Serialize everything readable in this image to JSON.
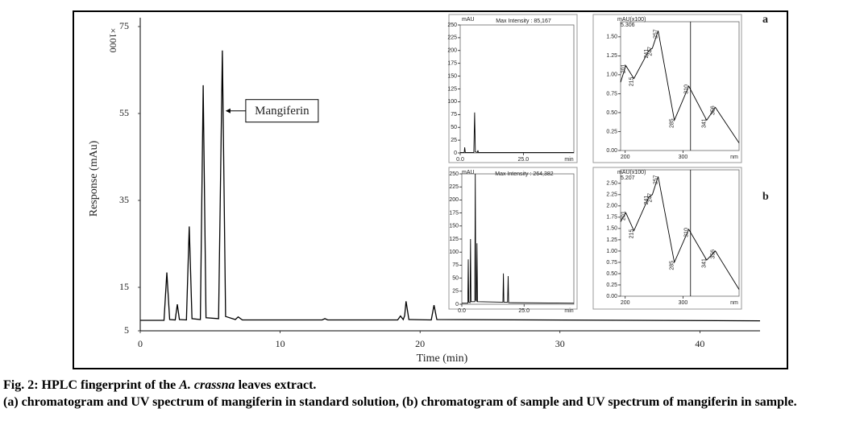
{
  "panel_labels": [
    "a",
    "b"
  ],
  "chart_data": [
    {
      "type": "line",
      "ylabel": "Response (mAu)",
      "xlabel": "Time (min)",
      "y_multiplier_label": "×1000",
      "annotation": "Mangiferin",
      "color": "#000000",
      "xlim": [
        0,
        44.3
      ],
      "ylim": [
        5,
        75
      ],
      "xticks": [
        0,
        10,
        20,
        30,
        40
      ],
      "yticks": [
        75,
        55,
        35,
        15,
        5
      ],
      "x": [
        0,
        1.7,
        1.9,
        2.1,
        2.5,
        2.65,
        2.8,
        3.3,
        3.5,
        3.7,
        4.3,
        4.5,
        4.7,
        5.6,
        5.87,
        6.1,
        6.8,
        7.0,
        7.3,
        13.0,
        13.2,
        13.4,
        18.4,
        18.6,
        18.8,
        18.9,
        19.0,
        19.2,
        20.8,
        21.0,
        21.2,
        44.3
      ],
      "values": [
        7.4,
        7.4,
        18.4,
        7.6,
        7.5,
        11.1,
        7.6,
        7.5,
        29,
        7.8,
        7.6,
        61.5,
        8,
        7.8,
        69.5,
        8.3,
        7.6,
        8.2,
        7.5,
        7.5,
        7.8,
        7.5,
        7.5,
        8.4,
        7.6,
        8.5,
        11.8,
        7.6,
        7.5,
        10.9,
        7.6,
        7.3
      ]
    },
    {
      "type": "line",
      "title": "Max Intensity : 85,167",
      "y_unit_label": "mAU",
      "x_unit_label": "min",
      "color": "#000000",
      "xlim": [
        0,
        45
      ],
      "ylim": [
        0,
        250
      ],
      "xticks": [
        {
          "value": 0,
          "label": "0.0"
        },
        {
          "value": 25,
          "label": "25.0"
        }
      ],
      "yticks": [
        0,
        25,
        50,
        75,
        100,
        125,
        150,
        175,
        200,
        225,
        250
      ],
      "x": [
        0,
        1.6,
        1.8,
        2.0,
        5.4,
        5.7,
        6.0,
        6.8,
        7.0,
        7.2,
        45
      ],
      "values": [
        1,
        1,
        11,
        1,
        1,
        79,
        2,
        1,
        5,
        1,
        1
      ]
    },
    {
      "type": "spectrum",
      "y_unit_label": "mAU(x100)",
      "subtitle": "5.306",
      "x_unit_label": "nm",
      "color": "#000000",
      "cursor_x": 313,
      "xlim": [
        192,
        397
      ],
      "ylim": [
        0,
        1.7
      ],
      "xticks": [
        200,
        300
      ],
      "yticks": [
        {
          "value": 0,
          "label": "0.00"
        },
        {
          "value": 0.25,
          "label": "0.25"
        },
        {
          "value": 0.5,
          "label": "0.50"
        },
        {
          "value": 0.75,
          "label": "0.75"
        },
        {
          "value": 1,
          "label": "1.00"
        },
        {
          "value": 1.25,
          "label": "1.25"
        },
        {
          "value": 1.5,
          "label": "1.50"
        }
      ],
      "x": [
        192,
        201,
        215,
        241,
        247,
        257,
        285,
        310,
        341,
        356,
        397
      ],
      "values": [
        0.9,
        1.12,
        0.95,
        1.32,
        1.35,
        1.58,
        0.4,
        0.85,
        0.4,
        0.57,
        0.1
      ],
      "point_labels": [
        null,
        "201",
        "215",
        "241",
        "247",
        "257",
        "285",
        "310",
        "341",
        "356",
        null
      ]
    },
    {
      "type": "line",
      "title": "Max Intensity : 264,382",
      "y_unit_label": "mAU",
      "x_unit_label": "min",
      "color": "#000000",
      "xlim": [
        0,
        45
      ],
      "ylim": [
        0,
        250
      ],
      "xticks": [
        {
          "value": 0,
          "label": "0.0"
        },
        {
          "value": 25,
          "label": "25.0"
        }
      ],
      "yticks": [
        0,
        25,
        50,
        75,
        100,
        125,
        150,
        175,
        200,
        225,
        250
      ],
      "x": [
        0,
        2.4,
        2.6,
        2.8,
        3.3,
        3.5,
        3.7,
        5.2,
        5.4,
        5.6,
        5.9,
        6.1,
        6.3,
        16.5,
        16.7,
        16.9,
        18.4,
        18.6,
        18.8,
        45
      ],
      "values": [
        2,
        2,
        86,
        4,
        3,
        125,
        5,
        5,
        250,
        8,
        6,
        117,
        5,
        4,
        59,
        4,
        4,
        54,
        3,
        2
      ]
    },
    {
      "type": "spectrum",
      "y_unit_label": "mAU(x100)",
      "subtitle": "5.207",
      "x_unit_label": "nm",
      "color": "#000000",
      "cursor_x": 313,
      "xlim": [
        192,
        397
      ],
      "ylim": [
        0,
        2.8
      ],
      "xticks": [
        200,
        300
      ],
      "yticks": [
        {
          "value": 0,
          "label": "0.00"
        },
        {
          "value": 0.25,
          "label": "0.25"
        },
        {
          "value": 0.5,
          "label": "0.50"
        },
        {
          "value": 0.75,
          "label": "0.75"
        },
        {
          "value": 1,
          "label": "1.00"
        },
        {
          "value": 1.25,
          "label": "1.25"
        },
        {
          "value": 1.5,
          "label": "1.50"
        },
        {
          "value": 1.75,
          "label": "1.75"
        },
        {
          "value": 2,
          "label": "2.00"
        },
        {
          "value": 2.25,
          "label": "2.25"
        },
        {
          "value": 2.5,
          "label": "2.50"
        }
      ],
      "x": [
        192,
        201,
        215,
        241,
        247,
        257,
        285,
        310,
        341,
        356,
        397
      ],
      "values": [
        1.65,
        1.85,
        1.45,
        2.2,
        2.25,
        2.65,
        0.75,
        1.48,
        0.8,
        1.0,
        0.15
      ],
      "point_labels": [
        null,
        "201",
        "215",
        "241",
        "247",
        "257",
        "285",
        "310",
        "341",
        "356",
        null
      ]
    }
  ],
  "caption": {
    "line1": [
      "Fig. 2: HPLC fingerprint of the ",
      "A. crassna",
      " leaves extract."
    ],
    "line2": "(a) chromatogram and UV spectrum of mangiferin in standard solution, (b) chromatogram of sample and UV spectrum of mangiferin in sample."
  }
}
